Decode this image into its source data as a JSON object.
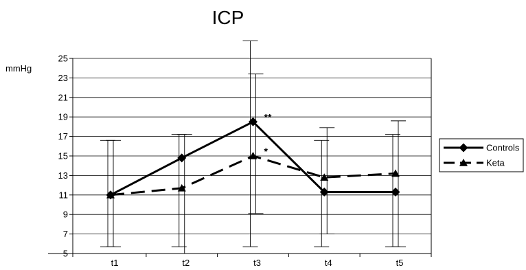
{
  "chart_data": {
    "type": "line",
    "title": "ICP",
    "ylabel": "mmHg",
    "xlabel": "",
    "categories": [
      "t1",
      "t2",
      "t3",
      "t4",
      "t5"
    ],
    "ylim": [
      5,
      25
    ],
    "yticks": [
      5,
      7,
      9,
      11,
      13,
      15,
      17,
      19,
      21,
      23,
      25
    ],
    "grid": "horizontal",
    "legend_position": "right",
    "series": [
      {
        "name": "Controls",
        "marker": "diamond",
        "line": "solid",
        "values": [
          11.0,
          14.8,
          18.5,
          11.3,
          11.3
        ],
        "error_low": [
          5.7,
          5.7,
          5.7,
          5.7,
          5.7
        ],
        "error_high": [
          16.6,
          17.2,
          26.8,
          16.6,
          17.2
        ]
      },
      {
        "name": "Keta",
        "marker": "triangle",
        "line": "dashed",
        "values": [
          11.0,
          11.7,
          15.0,
          12.8,
          13.2
        ],
        "error_low": [
          5.7,
          5.0,
          9.1,
          7.0,
          5.7
        ],
        "error_high": [
          16.6,
          17.2,
          23.4,
          17.9,
          18.6
        ]
      }
    ],
    "annotations": [
      {
        "category": "t3",
        "series": "Controls",
        "text": "**"
      },
      {
        "category": "t3",
        "series": "Keta",
        "text": "*"
      }
    ]
  }
}
